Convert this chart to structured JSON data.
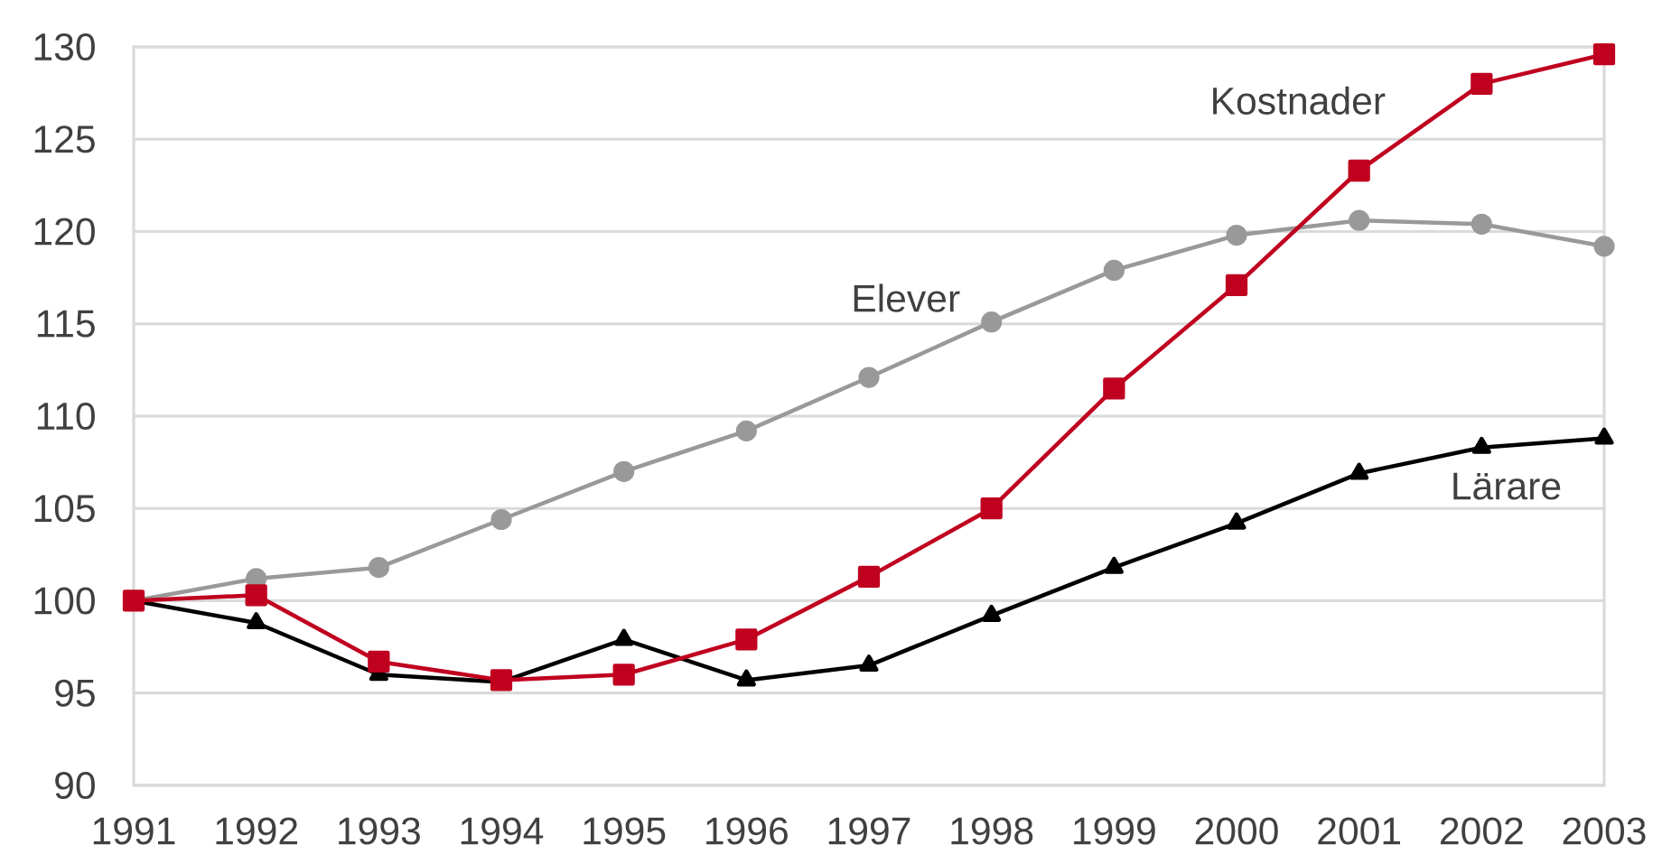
{
  "chart_data": {
    "type": "line",
    "x": [
      1991,
      1992,
      1993,
      1994,
      1995,
      1996,
      1997,
      1998,
      1999,
      2000,
      2001,
      2002,
      2003
    ],
    "series": [
      {
        "name": "Elever",
        "color": "#999999",
        "marker": "circle",
        "values": [
          100,
          101.2,
          101.8,
          104.4,
          107.0,
          109.2,
          112.1,
          115.1,
          117.9,
          119.8,
          120.6,
          120.4,
          119.2
        ]
      },
      {
        "name": "Lärare",
        "color": "#000000",
        "marker": "triangle",
        "values": [
          100,
          98.8,
          96.0,
          95.6,
          97.9,
          95.7,
          96.5,
          99.2,
          101.8,
          104.2,
          106.9,
          108.3,
          108.8
        ]
      },
      {
        "name": "Kostnader",
        "color": "#c0001f",
        "marker": "square",
        "values": [
          100,
          100.3,
          96.7,
          95.7,
          96.0,
          97.9,
          101.3,
          105.0,
          111.5,
          117.1,
          123.3,
          128.0,
          129.6
        ]
      }
    ],
    "xlim": [
      1991,
      2003
    ],
    "xticks": [
      1991,
      1992,
      1993,
      1994,
      1995,
      1996,
      1997,
      1998,
      1999,
      2000,
      2001,
      2002,
      2003
    ],
    "ylim": [
      90,
      130
    ],
    "yticks": [
      90,
      95,
      100,
      105,
      110,
      115,
      120,
      125,
      130
    ],
    "grid": "y",
    "legend": false,
    "line_style": "solid"
  }
}
